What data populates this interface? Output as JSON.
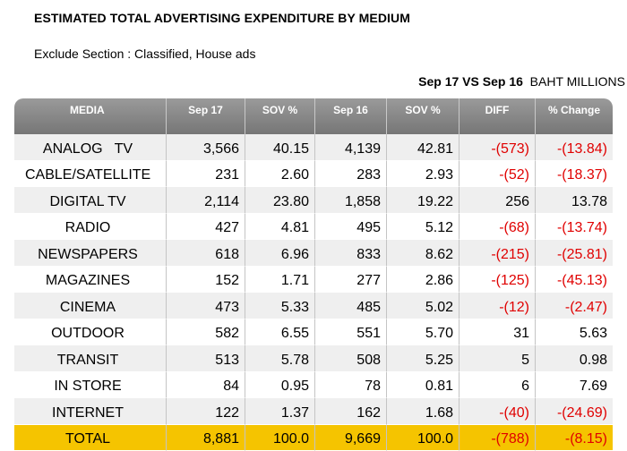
{
  "title": "ESTIMATED TOTAL ADVERTISING EXPENDITURE BY MEDIUM",
  "subtitle": "Exclude Section : Classified, House ads",
  "period_bold": "Sep 17 VS Sep 16",
  "period_unit": "BAHT MILLIONS",
  "table": {
    "headers": [
      "MEDIA",
      "Sep 17",
      "SOV %",
      "Sep 16",
      "SOV %",
      "DIFF",
      "% Change"
    ],
    "rows": [
      {
        "media": "ANALOG   TV",
        "sep17": "3,566",
        "sov17": "40.15",
        "sep16": "4,139",
        "sov16": "42.81",
        "diff": "-(573)",
        "change": "-(13.84)"
      },
      {
        "media": "CABLE/SATELLITE",
        "sep17": "231",
        "sov17": "2.60",
        "sep16": "283",
        "sov16": "2.93",
        "diff": "-(52)",
        "change": "-(18.37)"
      },
      {
        "media": "DIGITAL TV",
        "sep17": "2,114",
        "sov17": "23.80",
        "sep16": "1,858",
        "sov16": "19.22",
        "diff": "256",
        "change": "13.78"
      },
      {
        "media": "RADIO",
        "sep17": "427",
        "sov17": "4.81",
        "sep16": "495",
        "sov16": "5.12",
        "diff": "-(68)",
        "change": "-(13.74)"
      },
      {
        "media": "NEWSPAPERS",
        "sep17": "618",
        "sov17": "6.96",
        "sep16": "833",
        "sov16": "8.62",
        "diff": "-(215)",
        "change": "-(25.81)"
      },
      {
        "media": "MAGAZINES",
        "sep17": "152",
        "sov17": "1.71",
        "sep16": "277",
        "sov16": "2.86",
        "diff": "-(125)",
        "change": "-(45.13)"
      },
      {
        "media": "CINEMA",
        "sep17": "473",
        "sov17": "5.33",
        "sep16": "485",
        "sov16": "5.02",
        "diff": "-(12)",
        "change": "-(2.47)"
      },
      {
        "media": "OUTDOOR",
        "sep17": "582",
        "sov17": "6.55",
        "sep16": "551",
        "sov16": "5.70",
        "diff": "31",
        "change": "5.63"
      },
      {
        "media": "TRANSIT",
        "sep17": "513",
        "sov17": "5.78",
        "sep16": "508",
        "sov16": "5.25",
        "diff": "5",
        "change": "0.98"
      },
      {
        "media": "IN STORE",
        "sep17": "84",
        "sov17": "0.95",
        "sep16": "78",
        "sov16": "0.81",
        "diff": "6",
        "change": "7.69"
      },
      {
        "media": "INTERNET",
        "sep17": "122",
        "sov17": "1.37",
        "sep16": "162",
        "sov16": "1.68",
        "diff": "-(40)",
        "change": "-(24.69)"
      }
    ],
    "total": {
      "media": "TOTAL",
      "sep17": "8,881",
      "sov17": "100.0",
      "sep16": "9,669",
      "sov16": "100.0",
      "diff": "-(788)",
      "change": "-(8.15)"
    }
  },
  "colors": {
    "header_bg": "#8a8a8a",
    "row_shaded": "#efefef",
    "total_bg": "#f5c400",
    "negative": "#e00000"
  }
}
